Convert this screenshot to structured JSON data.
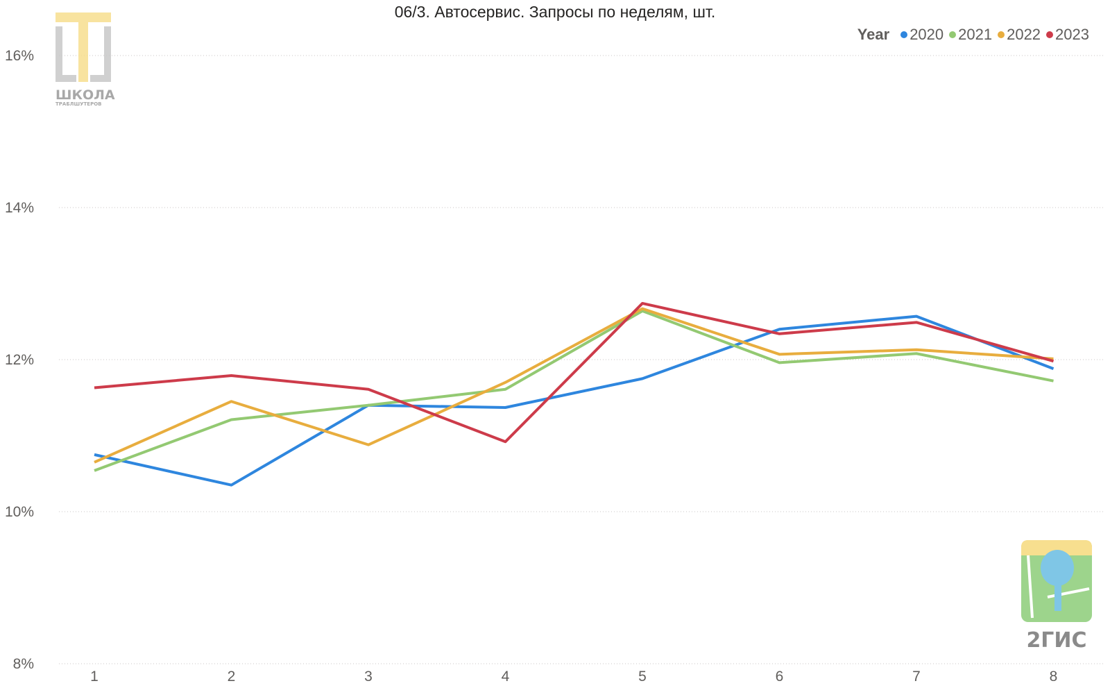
{
  "title": "06/3. Автосервис. Запросы по неделям, шт.",
  "colors": {
    "2020": "#2e86de",
    "2021": "#93c972",
    "2022": "#e8ad3e",
    "2023": "#cd3b4a"
  },
  "chart_data": {
    "type": "line",
    "title": "06/3. Автосервис. Запросы по неделям, шт.",
    "xlabel": "",
    "ylabel": "",
    "x": [
      1,
      2,
      3,
      4,
      5,
      6,
      7,
      8
    ],
    "ylim": [
      8,
      16
    ],
    "yticks": [
      8,
      10,
      12,
      14,
      16
    ],
    "ytick_labels": [
      "8%",
      "10%",
      "12%",
      "14%",
      "16%"
    ],
    "grid": true,
    "legend": {
      "title": "Year",
      "placement": "top-right"
    },
    "series": [
      {
        "name": "2020",
        "values": [
          10.75,
          10.35,
          11.4,
          11.37,
          11.75,
          12.4,
          12.57,
          11.88
        ]
      },
      {
        "name": "2021",
        "values": [
          10.54,
          11.21,
          11.4,
          11.61,
          12.64,
          11.96,
          12.08,
          11.72
        ]
      },
      {
        "name": "2022",
        "values": [
          10.65,
          11.45,
          10.88,
          11.7,
          12.67,
          12.07,
          12.13,
          12.01
        ]
      },
      {
        "name": "2023",
        "values": [
          11.63,
          11.79,
          11.61,
          10.92,
          12.74,
          12.34,
          12.49,
          11.98
        ]
      }
    ]
  },
  "logos": {
    "school_line1": "ШКОЛА",
    "school_line2": "ТРАБЛШУТЕРОВ",
    "gis": "2ГИС"
  }
}
